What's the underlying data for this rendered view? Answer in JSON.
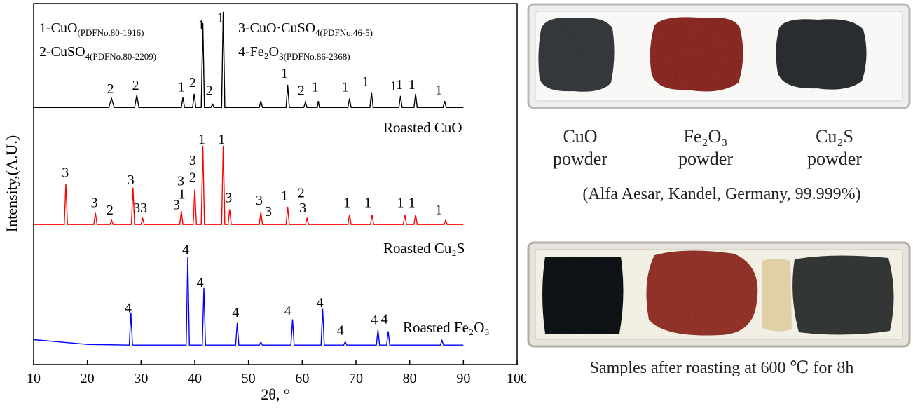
{
  "chart_data": {
    "type": "line",
    "xlabel": "2θ, °",
    "ylabel": "Intensity,(A.U.)",
    "xlim": [
      10,
      100
    ],
    "xticks": [
      10,
      20,
      30,
      40,
      50,
      60,
      70,
      80,
      90,
      100
    ],
    "ylim": [
      0,
      100
    ],
    "notes": [
      {
        "text": "1-CuO",
        "sub": "(PDFNo.80-1916)"
      },
      {
        "text": "2-CuSO",
        "sub": "4(PDFNo.80-2209)"
      },
      {
        "text": "3-CuO·CuSO",
        "sub": "4(PDFNo.46-5)"
      },
      {
        "text": "4-Fe₂O",
        "sub": "3(PDFNo.86-2368)"
      }
    ],
    "series": [
      {
        "name": "Roasted CuO",
        "color": "#000000",
        "x": [
          10,
          15,
          20,
          24,
          24.5,
          25,
          28.8,
          29.2,
          29.6,
          37.5,
          37.8,
          38.1,
          39.6,
          39.9,
          40.2,
          41.2,
          41.5,
          41.8,
          43,
          43.3,
          43.6,
          45,
          45.3,
          45.6,
          52,
          52.3,
          52.6,
          57,
          57.3,
          57.6,
          60.3,
          60.6,
          60.9,
          62.8,
          63,
          63.2,
          68.5,
          68.8,
          69.1,
          72.6,
          72.9,
          73.2,
          78,
          78.3,
          78.6,
          80.8,
          81.1,
          81.4,
          86.2,
          86.5,
          86.8,
          90
        ],
        "values": [
          71.2,
          71.2,
          71.2,
          71.2,
          73.7,
          71.2,
          71.2,
          74.6,
          71.2,
          71.2,
          74,
          71.2,
          71.2,
          75,
          71.2,
          71.2,
          94.6,
          71.2,
          71.2,
          72.1,
          71.2,
          71.2,
          97.7,
          71.2,
          71.2,
          73,
          71.2,
          71.2,
          77.5,
          71.2,
          71.2,
          72.7,
          71.2,
          71.2,
          73,
          71.2,
          71.2,
          73.7,
          71.2,
          71.2,
          75.4,
          71.2,
          71.2,
          74.4,
          71.2,
          71.2,
          75,
          71.2,
          71.2,
          73,
          71.2,
          71.2
        ]
      },
      {
        "name": "Roasted Cu₂S",
        "color": "#ff0000",
        "x": [
          10,
          15.7,
          16,
          16.3,
          21.2,
          21.5,
          21.8,
          24.2,
          24.5,
          24.8,
          28.2,
          28.5,
          28.8,
          30,
          30.3,
          30.6,
          37.2,
          37.5,
          37.8,
          39.7,
          40,
          40.3,
          41.2,
          41.5,
          41.8,
          45,
          45.3,
          45.6,
          46.2,
          46.5,
          46.8,
          52,
          52.3,
          52.6,
          57,
          57.3,
          57.6,
          60.6,
          60.9,
          61.2,
          68.5,
          68.8,
          69.1,
          72.7,
          73,
          73.3,
          78.8,
          79.1,
          79.4,
          80.8,
          81.1,
          81.4,
          86.4,
          86.7,
          87,
          90
        ],
        "values": [
          38.8,
          38.8,
          50,
          38.8,
          38.8,
          42,
          38.8,
          38.8,
          40,
          38.8,
          38.8,
          49,
          38.8,
          38.8,
          40.5,
          38.8,
          38.8,
          42.5,
          38.8,
          38.8,
          48.5,
          38.8,
          38.8,
          60.6,
          38.8,
          38.8,
          60.6,
          38.8,
          38.8,
          43,
          38.8,
          38.8,
          42.3,
          38.8,
          38.8,
          43.7,
          38.8,
          38.8,
          40.5,
          38.8,
          38.8,
          41.5,
          38.8,
          38.8,
          41.5,
          38.8,
          38.8,
          41.5,
          38.8,
          38.8,
          41.5,
          38.8,
          38.8,
          40,
          38.8,
          38.8
        ]
      },
      {
        "name": "Roasted Fe₂O₃",
        "color": "#0000ff",
        "x": [
          10,
          20,
          27.8,
          28.1,
          28.4,
          38.4,
          38.7,
          39,
          41.4,
          41.7,
          42,
          47.6,
          47.9,
          48.2,
          52,
          52.3,
          52.6,
          57.9,
          58.2,
          58.5,
          63.5,
          63.8,
          64.1,
          67.7,
          68,
          68.3,
          73.8,
          74.1,
          74.4,
          75.7,
          76,
          76.3,
          85.7,
          86,
          86.3,
          90
        ],
        "values": [
          6.9,
          5.6,
          5.4,
          14.4,
          5.4,
          5.4,
          29.8,
          5.4,
          5.4,
          21.2,
          5.4,
          5.4,
          11.5,
          5.4,
          5.4,
          6.2,
          5.4,
          5.4,
          12.5,
          5.4,
          5.4,
          15.4,
          5.4,
          5.4,
          6.3,
          5.4,
          5.4,
          9.6,
          5.4,
          5.4,
          9.2,
          5.4,
          5.4,
          6.7,
          5.4,
          5.4
        ]
      }
    ],
    "annotations": [
      {
        "text": "2",
        "x": 24.3,
        "y": 76.5
      },
      {
        "text": "2",
        "x": 29,
        "y": 77.5
      },
      {
        "text": "1",
        "x": 37.5,
        "y": 77
      },
      {
        "text": "2",
        "x": 39.6,
        "y": 78.3
      },
      {
        "text": "1",
        "x": 41.2,
        "y": 94.2
      },
      {
        "text": "2",
        "x": 42.7,
        "y": 76
      },
      {
        "text": "1",
        "x": 44.8,
        "y": 96.2
      },
      {
        "text": "1",
        "x": 56.7,
        "y": 80.8
      },
      {
        "text": "2",
        "x": 59.8,
        "y": 76
      },
      {
        "text": "1",
        "x": 62.4,
        "y": 77
      },
      {
        "text": "1",
        "x": 68,
        "y": 77
      },
      {
        "text": "1",
        "x": 71.8,
        "y": 78.5
      },
      {
        "text": "1",
        "x": 77,
        "y": 77.3
      },
      {
        "text": "1",
        "x": 78.1,
        "y": 77.7
      },
      {
        "text": "1",
        "x": 80.4,
        "y": 77.7
      },
      {
        "text": "1",
        "x": 85.4,
        "y": 76.2
      },
      {
        "text": "3",
        "x": 15.9,
        "y": 53.3
      },
      {
        "text": "3",
        "x": 21.3,
        "y": 45
      },
      {
        "text": "2",
        "x": 24.2,
        "y": 42.9
      },
      {
        "text": "3",
        "x": 28.1,
        "y": 51.3
      },
      {
        "text": "3",
        "x": 29.2,
        "y": 43.5
      },
      {
        "text": "3",
        "x": 30.5,
        "y": 43.5
      },
      {
        "text": "3",
        "x": 36.6,
        "y": 44.4
      },
      {
        "text": "1",
        "x": 37.6,
        "y": 47.3
      },
      {
        "text": "3",
        "x": 37.4,
        "y": 51
      },
      {
        "text": "2",
        "x": 39.6,
        "y": 51.9
      },
      {
        "text": "3",
        "x": 39.6,
        "y": 56.7
      },
      {
        "text": "1",
        "x": 41.3,
        "y": 62.5
      },
      {
        "text": "1",
        "x": 45,
        "y": 62.5
      },
      {
        "text": "3",
        "x": 46.3,
        "y": 46.3
      },
      {
        "text": "3",
        "x": 52,
        "y": 45.6
      },
      {
        "text": "3",
        "x": 53.7,
        "y": 42.5
      },
      {
        "text": "1",
        "x": 56.7,
        "y": 46.9
      },
      {
        "text": "2",
        "x": 59.8,
        "y": 47.7
      },
      {
        "text": "3",
        "x": 60.1,
        "y": 43.5
      },
      {
        "text": "1",
        "x": 68.3,
        "y": 45
      },
      {
        "text": "1",
        "x": 72.2,
        "y": 45
      },
      {
        "text": "1",
        "x": 78.3,
        "y": 45
      },
      {
        "text": "1",
        "x": 80.4,
        "y": 45
      },
      {
        "text": "1",
        "x": 85.4,
        "y": 43
      },
      {
        "text": "4",
        "x": 38.3,
        "y": 31.9
      },
      {
        "text": "4",
        "x": 27.6,
        "y": 15.8
      },
      {
        "text": "4",
        "x": 41,
        "y": 22.9
      },
      {
        "text": "4",
        "x": 47.6,
        "y": 14.6
      },
      {
        "text": "4",
        "x": 57.3,
        "y": 15
      },
      {
        "text": "4",
        "x": 63.3,
        "y": 17.3
      },
      {
        "text": "4",
        "x": 67.1,
        "y": 9.6
      },
      {
        "text": "4",
        "x": 73.4,
        "y": 12.5
      },
      {
        "text": "4",
        "x": 75.3,
        "y": 12.7
      }
    ]
  },
  "photos": {
    "samples": [
      {
        "name": "CuO",
        "label": "powder"
      },
      {
        "name": "Fe₂O₃",
        "label": "powder"
      },
      {
        "name": "Cu₂S",
        "label": "powder"
      }
    ],
    "source": "(Alfa Aesar, Kandel, Germany, 99.999%)",
    "caption": "Samples after roasting at 600 ℃ for 8h"
  }
}
